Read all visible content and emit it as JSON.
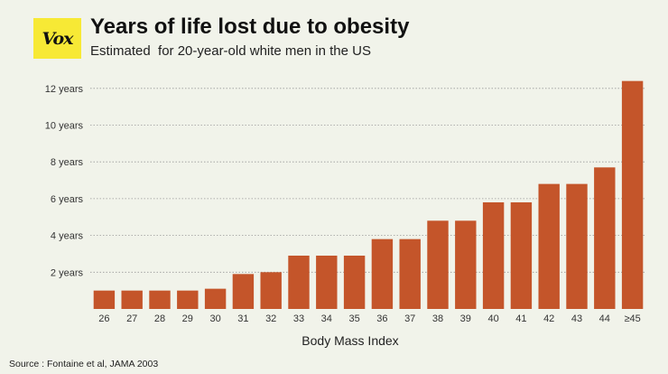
{
  "logo": {
    "text": "Vox",
    "color": "#f7e935"
  },
  "title": "Years of life lost due to obesity",
  "subtitle": "Estimated  for 20-year-old white men in the US",
  "source": "Source : Fontaine et al, JAMA 2003",
  "colors": {
    "bar": "#c4552a",
    "background": "#f1f3ea",
    "grid": "#9a9a9a"
  },
  "chart_data": {
    "type": "bar",
    "categories": [
      "26",
      "27",
      "28",
      "29",
      "30",
      "31",
      "32",
      "33",
      "34",
      "35",
      "36",
      "37",
      "38",
      "39",
      "40",
      "41",
      "42",
      "43",
      "44",
      "≥45"
    ],
    "values": [
      1.0,
      1.0,
      1.0,
      1.0,
      1.1,
      1.9,
      2.0,
      2.9,
      2.9,
      2.9,
      3.8,
      3.8,
      4.8,
      4.8,
      5.8,
      5.8,
      6.8,
      6.8,
      7.7,
      12.4
    ],
    "xlabel": "Body Mass Index",
    "ylabel": "",
    "ylim": [
      0,
      12.5
    ],
    "yticks": [
      2,
      4,
      6,
      8,
      10,
      12
    ],
    "ytick_labels": [
      "2 years",
      "4 years",
      "6 years",
      "8 years",
      "10 years",
      "12 years"
    ],
    "grid": true,
    "grid_style": "dotted horizontal"
  }
}
